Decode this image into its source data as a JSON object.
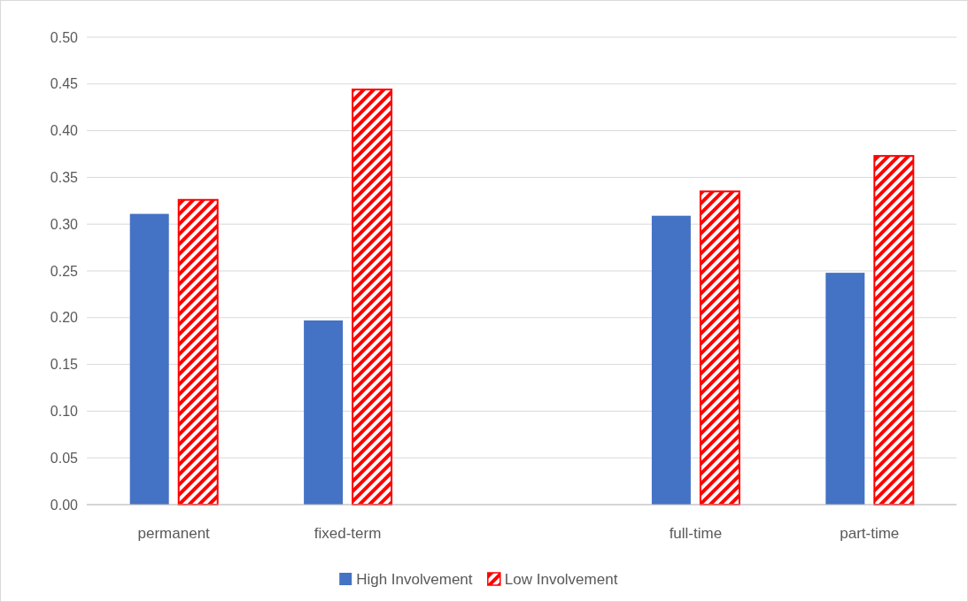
{
  "chart_data": {
    "type": "bar",
    "categories": [
      "permanent",
      "fixed-term",
      null,
      "full-time",
      "part-time"
    ],
    "series": [
      {
        "name": "High Involvement",
        "color": "#4472c4",
        "values": [
          0.311,
          0.197,
          null,
          0.309,
          0.248
        ]
      },
      {
        "name": "Low Involvement",
        "color": "#ff0000",
        "values": [
          0.326,
          0.444,
          null,
          0.335,
          0.373
        ]
      }
    ],
    "ylim": [
      0,
      0.5
    ],
    "yticks": [
      {
        "value": 0,
        "label": "0.00"
      },
      {
        "value": 0.05,
        "label": "0.05"
      },
      {
        "value": 0.1,
        "label": "0.10"
      },
      {
        "value": 0.15,
        "label": "0.15"
      },
      {
        "value": 0.2,
        "label": "0.20"
      },
      {
        "value": 0.25,
        "label": "0.25"
      },
      {
        "value": 0.3,
        "label": "0.30"
      },
      {
        "value": 0.35,
        "label": "0.35"
      },
      {
        "value": 0.4,
        "label": "0.40"
      },
      {
        "value": 0.45,
        "label": "0.45"
      },
      {
        "value": 0.5,
        "label": "0.50"
      }
    ],
    "grid": "y",
    "legend": "bottom"
  }
}
